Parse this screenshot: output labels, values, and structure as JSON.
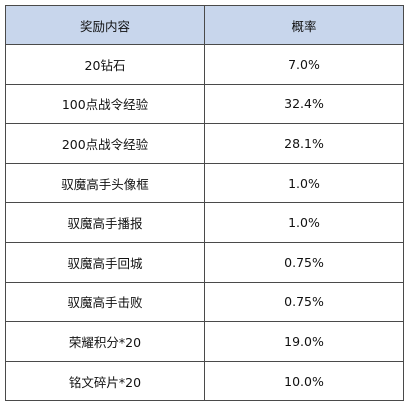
{
  "table": {
    "headers": [
      "奖励内容",
      "概率"
    ],
    "rows": [
      {
        "reward": "20钻石",
        "probability": "7.0%"
      },
      {
        "reward": "100点战令经验",
        "probability": "32.4%"
      },
      {
        "reward": "200点战令经验",
        "probability": "28.1%"
      },
      {
        "reward": "驭魔高手头像框",
        "probability": "1.0%"
      },
      {
        "reward": "驭魔高手播报",
        "probability": "1.0%"
      },
      {
        "reward": "驭魔高手回城",
        "probability": "0.75%"
      },
      {
        "reward": "驭魔高手击败",
        "probability": "0.75%"
      },
      {
        "reward": "荣耀积分*20",
        "probability": "19.0%"
      },
      {
        "reward": "铭文碎片*20",
        "probability": "10.0%"
      }
    ],
    "header_bg": "#c8d6ec",
    "border_color": "#4a4a4a"
  }
}
